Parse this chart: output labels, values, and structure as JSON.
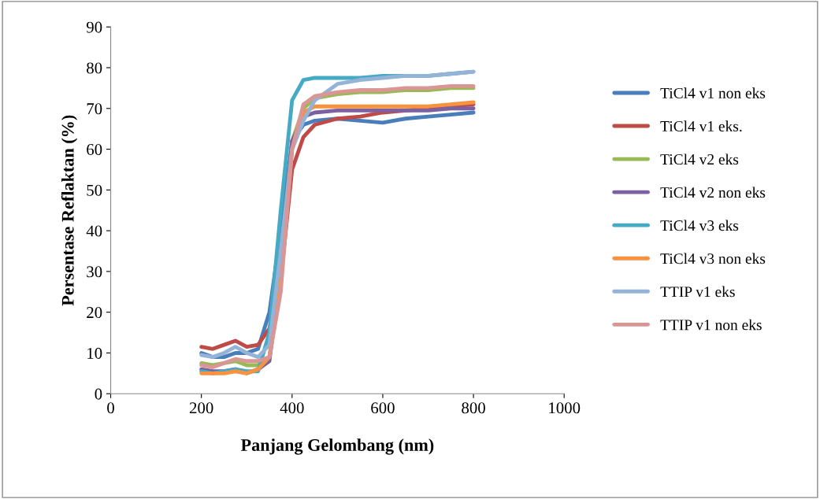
{
  "chart_data": {
    "type": "line",
    "xlabel": "Panjang Gelombang (nm)",
    "ylabel": "Persentase Reflaktan (%)",
    "x": [
      200,
      225,
      250,
      275,
      300,
      325,
      350,
      375,
      400,
      425,
      450,
      500,
      550,
      600,
      650,
      700,
      750,
      800
    ],
    "xlim": [
      0,
      1000
    ],
    "xticks": [
      0,
      200,
      400,
      600,
      800,
      1000
    ],
    "ylim": [
      0,
      90
    ],
    "yticks": [
      0,
      10,
      20,
      30,
      40,
      50,
      60,
      70,
      80,
      90
    ],
    "grid": false,
    "legend": "right",
    "marker": "none",
    "line_style": "solid",
    "series": [
      {
        "name": "TiCl4 v1 non eks",
        "color": "#4a7ebb",
        "values": [
          10,
          9,
          9,
          10,
          10,
          11,
          20,
          40,
          62,
          66,
          67,
          67.5,
          67,
          66.5,
          67.5,
          68,
          68.5,
          69
        ]
      },
      {
        "name": "TiCl4 v1 eks.",
        "color": "#be4b48",
        "values": [
          11.5,
          11,
          12,
          13,
          11.5,
          12,
          16,
          28,
          55,
          63,
          66,
          67.5,
          68,
          69,
          69.5,
          70,
          70.5,
          71
        ]
      },
      {
        "name": "TiCl4 v2 eks",
        "color": "#98b954",
        "values": [
          7.5,
          7,
          7.5,
          8,
          7,
          7,
          9,
          30,
          62,
          70,
          72.5,
          73.5,
          74,
          74,
          74.5,
          74.5,
          75,
          75
        ]
      },
      {
        "name": "TiCl4 v2 non eks",
        "color": "#7d60a0",
        "values": [
          6,
          5.5,
          5.5,
          6,
          5,
          6,
          8,
          30,
          62,
          68,
          69,
          69.5,
          69.5,
          69.5,
          69.5,
          69.5,
          70,
          70
        ]
      },
      {
        "name": "TiCl4 v3 eks",
        "color": "#46aac5",
        "values": [
          5.5,
          5,
          5.5,
          6,
          5.5,
          5.5,
          15,
          45,
          72,
          77,
          77.5,
          77.5,
          77.5,
          78,
          78,
          78,
          78.5,
          79
        ]
      },
      {
        "name": "TiCl4 v3 non eks",
        "color": "#f69240",
        "values": [
          5,
          5,
          5,
          5.5,
          5,
          6,
          9,
          28,
          60,
          69,
          70.5,
          70.5,
          70.5,
          70.5,
          70.5,
          70.5,
          71,
          71.5
        ]
      },
      {
        "name": "TTIP v1 eks",
        "color": "#95b3d7",
        "values": [
          9.5,
          9,
          10,
          11.5,
          10,
          9,
          12,
          35,
          60,
          67,
          72,
          76,
          77,
          77.5,
          78,
          78,
          78.5,
          79
        ]
      },
      {
        "name": "TTIP v1 non eks",
        "color": "#d99694",
        "values": [
          7,
          6.5,
          7.5,
          8.5,
          8,
          8,
          9,
          25,
          60,
          71,
          73,
          74,
          74.5,
          74.5,
          75,
          75,
          75.5,
          75.5
        ]
      }
    ]
  }
}
